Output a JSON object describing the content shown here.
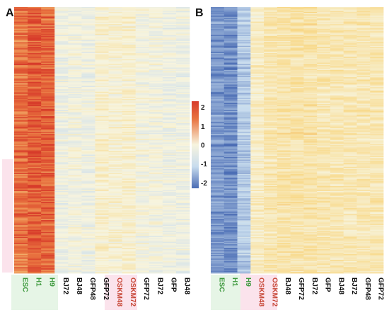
{
  "palette": {
    "low": "#4a6cb4",
    "mid_low": "#c8dcee",
    "mid": "#f7f4de",
    "mid_high": "#f8d98a",
    "high": "#e8723f",
    "max": "#d73a2a",
    "label_green": "#3f9a3f",
    "label_red": "#c84a3a",
    "label_black": "#111111",
    "highlight_green": "#e6f5e6",
    "highlight_pink": "#fbe3ec"
  },
  "chart_data": [
    {
      "panel": "A",
      "type": "heatmap",
      "columns": [
        "ESC",
        "H1",
        "H9",
        "BJ72",
        "BJ48",
        "GFP48",
        "GFP72",
        "OSKM48",
        "OSKM72",
        "GFP72",
        "BJ72",
        "GFP",
        "BJ48"
      ],
      "column_label_colors": [
        "green",
        "green",
        "green",
        "black",
        "black",
        "black",
        "black",
        "red",
        "red",
        "black",
        "black",
        "black",
        "black"
      ],
      "column_mean_z": [
        1.8,
        2.0,
        1.9,
        -0.2,
        -0.1,
        -0.2,
        0.2,
        0.1,
        0.2,
        -0.1,
        -0.1,
        -0.2,
        -0.2
      ],
      "rows_approx": 220
    },
    {
      "panel": "B",
      "type": "heatmap",
      "columns": [
        "ESC",
        "H1",
        "H9",
        "OSKM48",
        "OSKM72",
        "BJ48",
        "GFP72",
        "BJ72",
        "GFP",
        "BJ48",
        "BJ72",
        "GFP48",
        "GFP72"
      ],
      "column_label_colors": [
        "green",
        "green",
        "green",
        "red",
        "red",
        "black",
        "black",
        "black",
        "black",
        "black",
        "black",
        "black",
        "black"
      ],
      "column_mean_z": [
        -1.8,
        -1.9,
        -1.2,
        0.3,
        0.5,
        0.6,
        0.6,
        0.6,
        0.5,
        0.5,
        0.5,
        0.5,
        0.5
      ],
      "rows_approx": 220
    }
  ],
  "legend": {
    "ticks": [
      "2",
      "1",
      "0",
      "-1",
      "-2"
    ],
    "tick_values": [
      2,
      1,
      0,
      -1,
      -2
    ],
    "range": [
      -2.3,
      2.3
    ]
  }
}
